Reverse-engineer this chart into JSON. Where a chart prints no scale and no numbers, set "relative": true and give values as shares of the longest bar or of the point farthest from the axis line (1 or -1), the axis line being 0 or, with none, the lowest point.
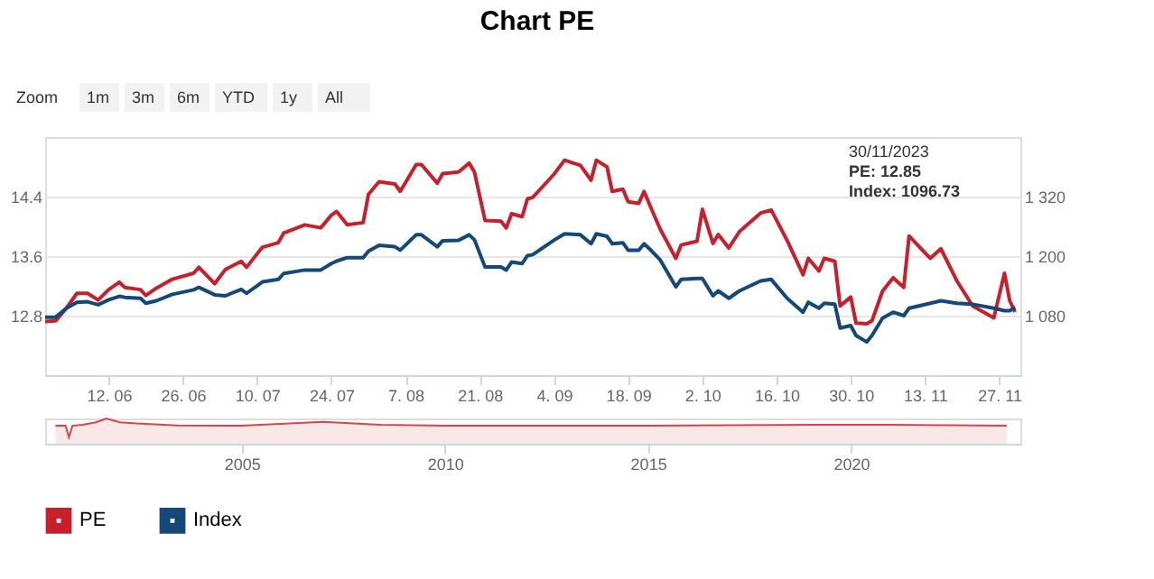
{
  "chart_data": [
    {
      "type": "line",
      "title": "Chart PE",
      "annotations": [
        "Zoom",
        "1m",
        "3m",
        "6m",
        "YTD",
        "1y",
        "All",
        "30/11/2023",
        "PE: 12.85",
        "Index: 1096.73"
      ],
      "x": [
        "2023-05-31",
        "2023-06-02",
        "2023-06-04",
        "2023-06-06",
        "2023-06-08",
        "2023-06-10",
        "2023-06-12",
        "2023-06-14",
        "2023-06-15",
        "2023-06-18",
        "2023-06-19",
        "2023-06-21",
        "2023-06-24",
        "2023-06-28",
        "2023-06-29",
        "2023-07-02",
        "2023-07-04",
        "2023-07-07",
        "2023-07-08",
        "2023-07-11",
        "2023-07-14",
        "2023-07-15",
        "2023-07-19",
        "2023-07-22",
        "2023-07-24",
        "2023-07-25",
        "2023-07-27",
        "2023-07-30",
        "2023-07-31",
        "2023-08-02",
        "2023-08-05",
        "2023-08-06",
        "2023-08-09",
        "2023-08-10",
        "2023-08-13",
        "2023-08-14",
        "2023-08-17",
        "2023-08-19",
        "2023-08-20",
        "2023-08-22",
        "2023-08-25",
        "2023-08-26",
        "2023-08-27",
        "2023-08-29",
        "2023-08-30",
        "2023-08-31",
        "2023-09-04",
        "2023-09-06",
        "2023-09-09",
        "2023-09-11",
        "2023-09-12",
        "2023-09-14",
        "2023-09-15",
        "2023-09-17",
        "2023-09-18",
        "2023-09-20",
        "2023-09-21",
        "2023-09-22",
        "2023-09-24",
        "2023-09-27",
        "2023-09-28",
        "2023-10-01",
        "2023-10-02",
        "2023-10-04",
        "2023-10-05",
        "2023-10-07",
        "2023-10-09",
        "2023-10-13",
        "2023-10-15",
        "2023-10-18",
        "2023-10-21",
        "2023-10-22",
        "2023-10-24",
        "2023-10-25",
        "2023-10-27",
        "2023-10-28",
        "2023-10-30",
        "2023-10-31",
        "2023-11-02",
        "2023-11-03",
        "2023-11-05",
        "2023-11-07",
        "2023-11-09",
        "2023-11-10",
        "2023-11-14",
        "2023-11-16",
        "2023-11-19",
        "2023-11-22",
        "2023-11-26",
        "2023-11-28",
        "2023-11-29",
        "2023-11-30"
      ],
      "series": [
        {
          "name": "PE",
          "color": "#c8202a",
          "values": [
            12.72,
            12.73,
            12.9,
            13.1,
            13.1,
            13.01,
            13.15,
            13.25,
            13.18,
            13.15,
            13.07,
            13.17,
            13.29,
            13.37,
            13.45,
            13.23,
            13.42,
            13.53,
            13.45,
            13.72,
            13.78,
            13.91,
            14.02,
            13.98,
            14.15,
            14.2,
            14.02,
            14.05,
            14.43,
            14.6,
            14.57,
            14.47,
            14.83,
            14.83,
            14.58,
            14.71,
            14.73,
            14.85,
            14.73,
            14.08,
            14.07,
            13.98,
            14.17,
            14.13,
            14.37,
            14.39,
            14.7,
            14.89,
            14.82,
            14.62,
            14.89,
            14.8,
            14.47,
            14.5,
            14.33,
            14.31,
            14.47,
            14.3,
            13.97,
            13.57,
            13.75,
            13.8,
            14.23,
            13.77,
            13.89,
            13.71,
            13.93,
            14.18,
            14.22,
            13.81,
            13.35,
            13.57,
            13.4,
            13.57,
            13.53,
            12.93,
            13.05,
            12.7,
            12.69,
            12.73,
            13.13,
            13.31,
            13.18,
            13.87,
            13.57,
            13.7,
            13.27,
            12.93,
            12.77,
            13.37,
            13.0,
            12.85
          ]
        },
        {
          "name": "Index",
          "color": "#13487a",
          "axis": "y2",
          "values": [
            1077,
            1077,
            1095,
            1107,
            1108,
            1102,
            1112,
            1119,
            1117,
            1115,
            1105,
            1110,
            1123,
            1132,
            1137,
            1122,
            1120,
            1133,
            1125,
            1148,
            1153,
            1165,
            1172,
            1172,
            1185,
            1190,
            1197,
            1197,
            1210,
            1222,
            1219,
            1212,
            1243,
            1243,
            1219,
            1231,
            1232,
            1243,
            1233,
            1178,
            1178,
            1172,
            1188,
            1185,
            1201,
            1203,
            1232,
            1245,
            1243,
            1225,
            1245,
            1240,
            1225,
            1227,
            1212,
            1212,
            1225,
            1215,
            1193,
            1138,
            1153,
            1155,
            1155,
            1120,
            1130,
            1115,
            1130,
            1150,
            1153,
            1115,
            1087,
            1107,
            1095,
            1105,
            1103,
            1055,
            1060,
            1040,
            1027,
            1040,
            1075,
            1087,
            1080,
            1095,
            1105,
            1110,
            1105,
            1103,
            1095,
            1090,
            1090,
            1096.73
          ]
        }
      ],
      "xlim": [
        "2023-05-31",
        "2023-12-01"
      ],
      "xticks": [
        {
          "value": "2023-06-12",
          "label": "12. 06"
        },
        {
          "value": "2023-06-26",
          "label": "26. 06"
        },
        {
          "value": "2023-07-10",
          "label": "10. 07"
        },
        {
          "value": "2023-07-24",
          "label": "24. 07"
        },
        {
          "value": "2023-08-07",
          "label": "7. 08"
        },
        {
          "value": "2023-08-21",
          "label": "21. 08"
        },
        {
          "value": "2023-09-04",
          "label": "4. 09"
        },
        {
          "value": "2023-09-18",
          "label": "18. 09"
        },
        {
          "value": "2023-10-02",
          "label": "2. 10"
        },
        {
          "value": "2023-10-16",
          "label": "16. 10"
        },
        {
          "value": "2023-10-30",
          "label": "30. 10"
        },
        {
          "value": "2023-11-13",
          "label": "13. 11"
        },
        {
          "value": "2023-11-27",
          "label": "27. 11"
        }
      ],
      "ylim": [
        12.0,
        15.2
      ],
      "yticks": [
        12.8,
        13.6,
        14.4
      ],
      "y2lim": [
        960,
        1440
      ],
      "y2ticks": [
        {
          "value": 1080,
          "label": "1 080"
        },
        {
          "value": 1200,
          "label": "1 200"
        },
        {
          "value": 1320,
          "label": "1 320"
        }
      ],
      "grid": "y",
      "legend": "bottom",
      "line_style": "solid"
    },
    {
      "type": "area",
      "relative": true,
      "x": [
        "2000-06",
        "2000-09",
        "2000-10",
        "2000-11",
        "2001-02",
        "2001-06",
        "2001-09",
        "2002-01",
        "2002-06",
        "2003-06",
        "2005-01",
        "2007-01",
        "2008-06",
        "2010-01",
        "2015-01",
        "2019-01",
        "2021-01",
        "2023-11"
      ],
      "series": [
        {
          "color": "#d9434b",
          "values": [
            0.71,
            0.71,
            0.26,
            0.71,
            0.75,
            0.85,
            1.0,
            0.85,
            0.8,
            0.72,
            0.71,
            0.87,
            0.75,
            0.71,
            0.71,
            0.75,
            0.75,
            0.71
          ]
        }
      ],
      "xlim": [
        "2000-03",
        "2024-03"
      ],
      "xticks": [
        "2005",
        "2010",
        "2015",
        "2020"
      ]
    }
  ]
}
